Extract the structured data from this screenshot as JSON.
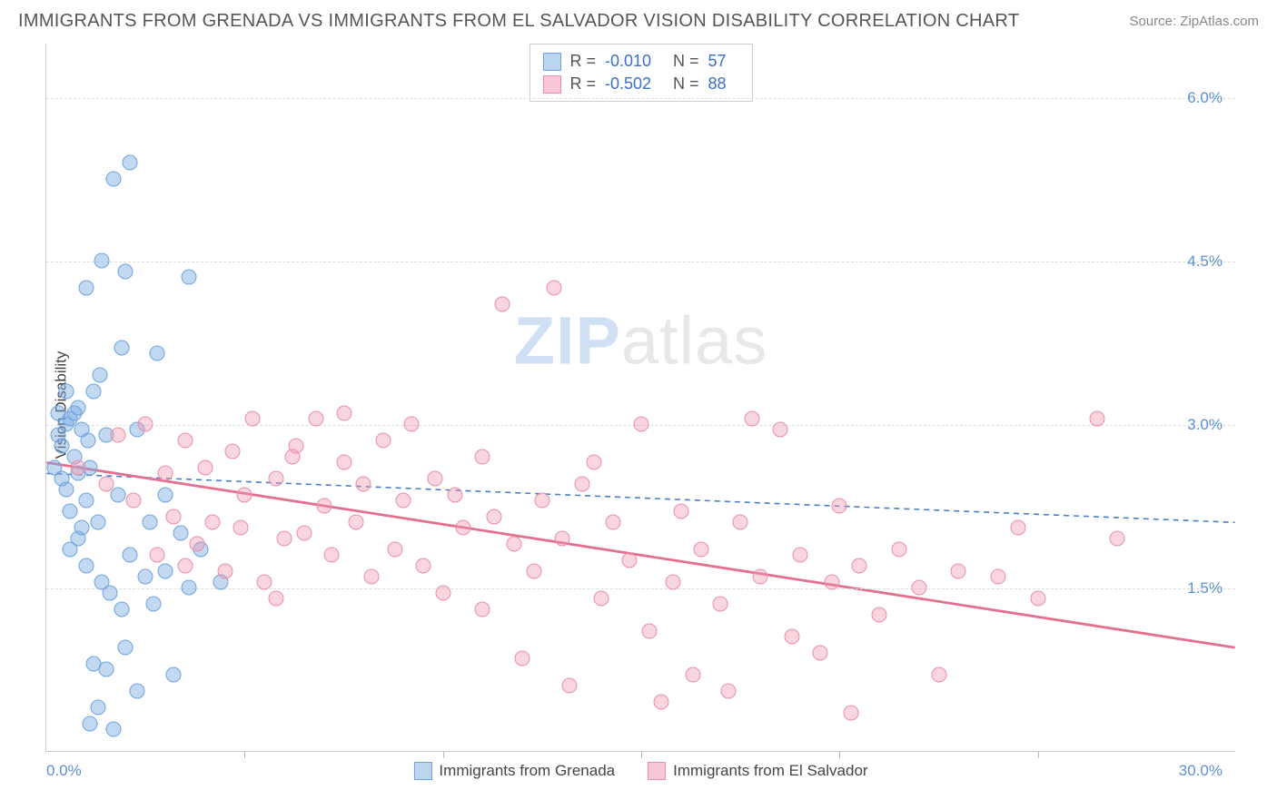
{
  "title": "IMMIGRANTS FROM GRENADA VS IMMIGRANTS FROM EL SALVADOR VISION DISABILITY CORRELATION CHART",
  "source": "Source: ZipAtlas.com",
  "ylabel": "Vision Disability",
  "watermark_a": "ZIP",
  "watermark_b": "atlas",
  "chart": {
    "type": "scatter",
    "xlim": [
      0,
      30
    ],
    "ylim": [
      0,
      6.5
    ],
    "x_start_label": "0.0%",
    "x_end_label": "30.0%",
    "y_ticks": [
      1.5,
      3.0,
      4.5,
      6.0
    ],
    "y_labels": [
      "1.5%",
      "3.0%",
      "4.5%",
      "6.0%"
    ],
    "x_ticks": [
      5,
      10,
      15,
      20,
      25
    ],
    "background_color": "#ffffff",
    "grid_color": "#dddddd",
    "axis_color": "#cccccc"
  },
  "series": [
    {
      "name": "Immigrants from Grenada",
      "color_fill": "rgba(120,170,225,0.45)",
      "color_stroke": "#6fa3dd",
      "swatch_fill": "#bcd5ef",
      "swatch_border": "#6fa3dd",
      "R": "-0.010",
      "N": "57",
      "trend": {
        "y1": 2.55,
        "y2": 2.1,
        "dash": "6,5",
        "stroke": "#4a7fc7",
        "width": 1.6
      },
      "points": [
        [
          0.2,
          2.6
        ],
        [
          0.3,
          2.9
        ],
        [
          0.3,
          3.1
        ],
        [
          0.4,
          2.5
        ],
        [
          0.4,
          2.8
        ],
        [
          0.5,
          2.4
        ],
        [
          0.5,
          3.0
        ],
        [
          0.6,
          2.2
        ],
        [
          0.6,
          3.05
        ],
        [
          0.7,
          2.7
        ],
        [
          0.7,
          3.1
        ],
        [
          0.8,
          1.95
        ],
        [
          0.8,
          2.55
        ],
        [
          0.9,
          2.05
        ],
        [
          0.9,
          2.95
        ],
        [
          1.0,
          1.7
        ],
        [
          1.0,
          2.3
        ],
        [
          1.0,
          4.25
        ],
        [
          1.1,
          0.25
        ],
        [
          1.1,
          2.6
        ],
        [
          1.2,
          0.8
        ],
        [
          1.2,
          3.3
        ],
        [
          1.3,
          0.4
        ],
        [
          1.3,
          2.1
        ],
        [
          1.4,
          1.55
        ],
        [
          1.4,
          4.5
        ],
        [
          1.5,
          0.75
        ],
        [
          1.5,
          2.9
        ],
        [
          1.6,
          1.45
        ],
        [
          1.7,
          0.2
        ],
        [
          1.7,
          5.25
        ],
        [
          1.8,
          2.35
        ],
        [
          1.9,
          1.3
        ],
        [
          1.9,
          3.7
        ],
        [
          2.0,
          0.95
        ],
        [
          2.0,
          4.4
        ],
        [
          2.1,
          1.8
        ],
        [
          2.1,
          5.4
        ],
        [
          2.3,
          0.55
        ],
        [
          2.3,
          2.95
        ],
        [
          2.5,
          1.6
        ],
        [
          2.6,
          2.1
        ],
        [
          2.7,
          1.35
        ],
        [
          2.8,
          3.65
        ],
        [
          3.0,
          2.35
        ],
        [
          3.0,
          1.65
        ],
        [
          3.2,
          0.7
        ],
        [
          3.4,
          2.0
        ],
        [
          3.6,
          1.5
        ],
        [
          3.6,
          4.35
        ],
        [
          3.9,
          1.85
        ],
        [
          4.4,
          1.55
        ],
        [
          0.5,
          3.3
        ],
        [
          0.6,
          1.85
        ],
        [
          0.8,
          3.15
        ],
        [
          1.05,
          2.85
        ],
        [
          1.35,
          3.45
        ]
      ]
    },
    {
      "name": "Immigrants from El Salvador",
      "color_fill": "rgba(240,150,175,0.40)",
      "color_stroke": "#e98fa8",
      "swatch_fill": "#f6c7d4",
      "swatch_border": "#e98fa8",
      "R": "-0.502",
      "N": "88",
      "trend": {
        "y1": 2.65,
        "y2": 0.95,
        "dash": "",
        "stroke": "#e56f8f",
        "width": 2.8
      },
      "points": [
        [
          0.8,
          2.6
        ],
        [
          1.5,
          2.45
        ],
        [
          1.8,
          2.9
        ],
        [
          2.2,
          2.3
        ],
        [
          2.5,
          3.0
        ],
        [
          2.8,
          1.8
        ],
        [
          3.0,
          2.55
        ],
        [
          3.2,
          2.15
        ],
        [
          3.5,
          2.85
        ],
        [
          3.8,
          1.9
        ],
        [
          4.0,
          2.6
        ],
        [
          4.2,
          2.1
        ],
        [
          4.5,
          1.65
        ],
        [
          4.7,
          2.75
        ],
        [
          5.0,
          2.35
        ],
        [
          5.2,
          3.05
        ],
        [
          5.5,
          1.55
        ],
        [
          5.8,
          2.5
        ],
        [
          6.0,
          1.95
        ],
        [
          6.3,
          2.8
        ],
        [
          6.5,
          2.0
        ],
        [
          6.8,
          3.05
        ],
        [
          7.0,
          2.25
        ],
        [
          7.2,
          1.8
        ],
        [
          7.5,
          2.65
        ],
        [
          7.8,
          2.1
        ],
        [
          8.0,
          2.45
        ],
        [
          8.2,
          1.6
        ],
        [
          8.5,
          2.85
        ],
        [
          8.8,
          1.85
        ],
        [
          9.0,
          2.3
        ],
        [
          9.5,
          1.7
        ],
        [
          9.8,
          2.5
        ],
        [
          10.0,
          1.45
        ],
        [
          10.3,
          2.35
        ],
        [
          10.5,
          2.05
        ],
        [
          11.0,
          1.3
        ],
        [
          11.3,
          2.15
        ],
        [
          11.5,
          4.1
        ],
        [
          11.8,
          1.9
        ],
        [
          12.0,
          0.85
        ],
        [
          12.3,
          1.65
        ],
        [
          12.5,
          2.3
        ],
        [
          12.8,
          4.25
        ],
        [
          13.0,
          1.95
        ],
        [
          13.2,
          0.6
        ],
        [
          13.5,
          2.45
        ],
        [
          14.0,
          1.4
        ],
        [
          14.3,
          2.1
        ],
        [
          14.7,
          1.75
        ],
        [
          15.0,
          3.0
        ],
        [
          15.2,
          1.1
        ],
        [
          15.5,
          0.45
        ],
        [
          15.8,
          1.55
        ],
        [
          16.0,
          2.2
        ],
        [
          16.3,
          0.7
        ],
        [
          16.5,
          1.85
        ],
        [
          17.0,
          1.35
        ],
        [
          17.2,
          0.55
        ],
        [
          17.5,
          2.1
        ],
        [
          17.8,
          3.05
        ],
        [
          18.0,
          1.6
        ],
        [
          18.5,
          2.95
        ],
        [
          18.8,
          1.05
        ],
        [
          19.0,
          1.8
        ],
        [
          19.5,
          0.9
        ],
        [
          19.8,
          1.55
        ],
        [
          20.0,
          2.25
        ],
        [
          20.3,
          0.35
        ],
        [
          20.5,
          1.7
        ],
        [
          21.0,
          1.25
        ],
        [
          21.5,
          1.85
        ],
        [
          22.0,
          1.5
        ],
        [
          22.5,
          0.7
        ],
        [
          23.0,
          1.65
        ],
        [
          24.0,
          1.6
        ],
        [
          24.5,
          2.05
        ],
        [
          25.0,
          1.4
        ],
        [
          26.5,
          3.05
        ],
        [
          27.0,
          1.95
        ],
        [
          5.8,
          1.4
        ],
        [
          7.5,
          3.1
        ],
        [
          9.2,
          3.0
        ],
        [
          11.0,
          2.7
        ],
        [
          13.8,
          2.65
        ],
        [
          3.5,
          1.7
        ],
        [
          4.9,
          2.05
        ],
        [
          6.2,
          2.7
        ]
      ]
    }
  ],
  "legend_top": {
    "R_label": "R =",
    "N_label": "N ="
  },
  "legend_bottom_labels": [
    "Immigrants from Grenada",
    "Immigrants from El Salvador"
  ]
}
